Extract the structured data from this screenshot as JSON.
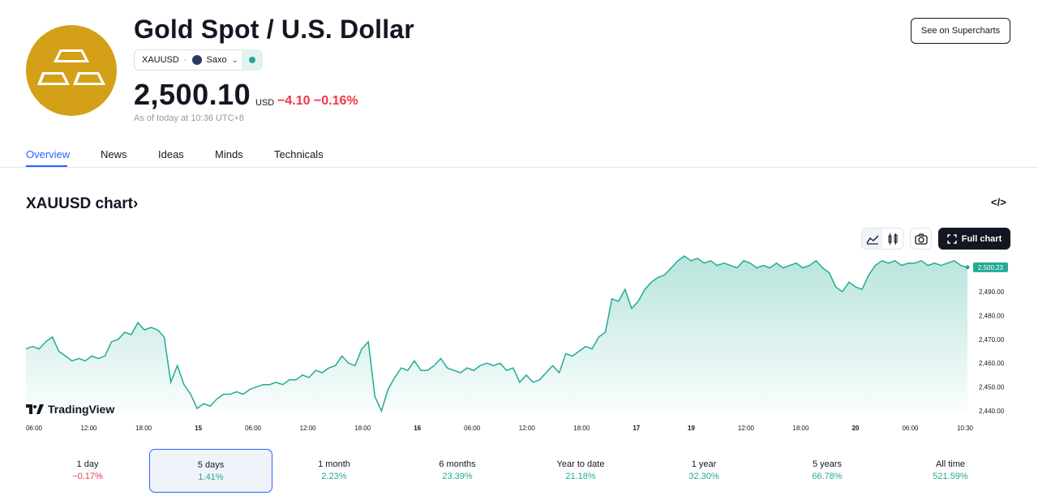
{
  "header": {
    "title": "Gold Spot / U.S. Dollar",
    "symbol": "XAUUSD",
    "separator": "·",
    "exchange": "Saxo",
    "price": "2,500.10",
    "currency": "USD",
    "change": "−4.10",
    "change_pct": "−0.16%",
    "as_of": "As of today at 10:36 UTC+8",
    "supercharts_label": "See on Supercharts"
  },
  "tabs": [
    {
      "label": "Overview"
    },
    {
      "label": "News"
    },
    {
      "label": "Ideas"
    },
    {
      "label": "Minds"
    },
    {
      "label": "Technicals"
    }
  ],
  "chart_section": {
    "title": "XAUUSD chart",
    "title_arrow": "›",
    "embed_label": "</>",
    "full_chart_label": "Full chart",
    "brand": "TradingView"
  },
  "colors": {
    "accent": "#2962ff",
    "positive": "#22ab94",
    "negative": "#f23645",
    "gold": "#d4a017"
  },
  "chart_data": {
    "type": "area",
    "x_ticks": [
      "06:00",
      "12:00",
      "18:00",
      "15",
      "06:00",
      "12:00",
      "18:00",
      "16",
      "06:00",
      "12:00",
      "18:00",
      "17",
      "19",
      "12:00",
      "18:00",
      "20",
      "06:00",
      "10:30"
    ],
    "y_ticks": [
      "2,490.00",
      "2,480.00",
      "2,470.00",
      "2,460.00",
      "2,450.00",
      "2,440.00"
    ],
    "ylim": [
      2439,
      2507
    ],
    "last_value_label": "2,500.23",
    "last_value": 2500.23,
    "values": [
      2466,
      2467,
      2466,
      2469,
      2471,
      2465,
      2463,
      2461,
      2462,
      2461,
      2463,
      2462,
      2463,
      2469,
      2470,
      2473,
      2472,
      2477,
      2474,
      2475,
      2474,
      2471,
      2452,
      2459,
      2451,
      2447,
      2441,
      2443,
      2442,
      2445,
      2447,
      2447,
      2448,
      2447,
      2449,
      2450,
      2451,
      2451,
      2452,
      2451,
      2453,
      2453,
      2455,
      2454,
      2457,
      2456,
      2458,
      2459,
      2463,
      2460,
      2459,
      2466,
      2469,
      2446,
      2440,
      2449,
      2454,
      2458,
      2457,
      2461,
      2457,
      2457,
      2459,
      2462,
      2458,
      2457,
      2456,
      2458,
      2457,
      2459,
      2460,
      2459,
      2460,
      2457,
      2458,
      2452,
      2455,
      2452,
      2453,
      2456,
      2459,
      2456,
      2464,
      2463,
      2465,
      2467,
      2466,
      2471,
      2473,
      2487,
      2486,
      2491,
      2483,
      2486,
      2491,
      2494,
      2496,
      2497,
      2500,
      2503,
      2505,
      2503,
      2504,
      2502,
      2503,
      2501,
      2502,
      2501,
      2500,
      2503,
      2502,
      2500,
      2501,
      2500,
      2502,
      2500,
      2501,
      2502,
      2500,
      2501,
      2503,
      2500,
      2498,
      2492,
      2490,
      2494,
      2492,
      2491,
      2497,
      2501,
      2503,
      2502,
      2503,
      2501,
      2502,
      2502,
      2503,
      2501,
      2502,
      2501,
      2502,
      2503,
      2501,
      2500.23
    ]
  },
  "periods": [
    {
      "label": "1 day",
      "value": "−0.17%",
      "dir": "neg"
    },
    {
      "label": "5 days",
      "value": "1.41%",
      "dir": "pos"
    },
    {
      "label": "1 month",
      "value": "2.23%",
      "dir": "pos"
    },
    {
      "label": "6 months",
      "value": "23.39%",
      "dir": "pos"
    },
    {
      "label": "Year to date",
      "value": "21.18%",
      "dir": "pos"
    },
    {
      "label": "1 year",
      "value": "32.30%",
      "dir": "pos"
    },
    {
      "label": "5 years",
      "value": "66.78%",
      "dir": "pos"
    },
    {
      "label": "All time",
      "value": "521.59%",
      "dir": "pos"
    }
  ]
}
